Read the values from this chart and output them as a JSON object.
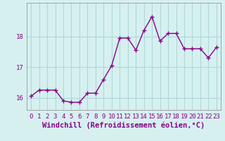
{
  "x": [
    0,
    1,
    2,
    3,
    4,
    5,
    6,
    7,
    8,
    9,
    10,
    11,
    12,
    13,
    14,
    15,
    16,
    17,
    18,
    19,
    20,
    21,
    22,
    23
  ],
  "y": [
    16.05,
    16.25,
    16.25,
    16.25,
    15.9,
    15.85,
    15.85,
    16.15,
    16.15,
    16.6,
    17.05,
    17.95,
    17.95,
    17.55,
    18.2,
    18.65,
    17.85,
    18.1,
    18.1,
    17.6,
    17.6,
    17.6,
    17.3,
    17.65
  ],
  "line_color": "#880088",
  "marker": "+",
  "marker_size": 4,
  "marker_edge_width": 1.0,
  "bg_color": "#d6f0f0",
  "grid_color": "#b0d8d8",
  "xlabel": "Windchill (Refroidissement éolien,°C)",
  "ylim": [
    15.6,
    19.1
  ],
  "yticks": [
    16,
    17,
    18
  ],
  "xlim": [
    -0.5,
    23.5
  ],
  "xticks": [
    0,
    1,
    2,
    3,
    4,
    5,
    6,
    7,
    8,
    9,
    10,
    11,
    12,
    13,
    14,
    15,
    16,
    17,
    18,
    19,
    20,
    21,
    22,
    23
  ],
  "tick_fontsize": 6.5,
  "xlabel_fontsize": 7.5,
  "line_width": 1.0,
  "spine_color": "#888888"
}
